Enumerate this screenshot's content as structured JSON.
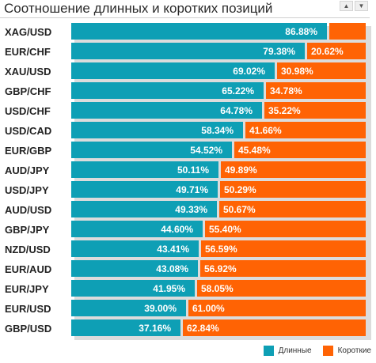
{
  "title": "Соотношение длинных и коротких позиций",
  "nav": {
    "up_icon": "triangle-up-icon",
    "down_icon": "triangle-down-icon"
  },
  "colors": {
    "long": "#0e9fb5",
    "short": "#ff6304"
  },
  "legend": {
    "long_label": "Длинные",
    "short_label": "Короткие"
  },
  "chart_data": {
    "type": "bar",
    "orientation": "horizontal-stacked-100",
    "title": "Соотношение длинных и коротких позиций",
    "categories": [
      "XAG/USD",
      "EUR/CHF",
      "XAU/USD",
      "GBP/CHF",
      "USD/CHF",
      "USD/CAD",
      "EUR/GBP",
      "AUD/JPY",
      "USD/JPY",
      "AUD/USD",
      "GBP/JPY",
      "NZD/USD",
      "EUR/AUD",
      "EUR/JPY",
      "EUR/USD",
      "GBP/USD"
    ],
    "series": [
      {
        "name": "Длинные",
        "values": [
          86.88,
          79.38,
          69.02,
          65.22,
          64.78,
          58.34,
          54.52,
          50.11,
          49.71,
          49.33,
          44.6,
          43.41,
          43.08,
          41.95,
          39.0,
          37.16
        ],
        "labels": [
          "86.88%",
          "79.38%",
          "69.02%",
          "65.22%",
          "64.78%",
          "58.34%",
          "54.52%",
          "50.11%",
          "49.71%",
          "49.33%",
          "44.60%",
          "43.41%",
          "43.08%",
          "41.95%",
          "39.00%",
          "37.16%"
        ]
      },
      {
        "name": "Короткие",
        "values": [
          13.12,
          20.62,
          30.98,
          34.78,
          35.22,
          41.66,
          45.48,
          49.89,
          50.29,
          50.67,
          55.4,
          56.59,
          56.92,
          58.05,
          61.0,
          62.84
        ],
        "labels": [
          "",
          "20.62%",
          "30.98%",
          "34.78%",
          "35.22%",
          "41.66%",
          "45.48%",
          "49.89%",
          "50.29%",
          "50.67%",
          "55.40%",
          "56.59%",
          "56.92%",
          "58.05%",
          "61.00%",
          "62.84%"
        ]
      }
    ],
    "xlim": [
      0,
      100
    ],
    "legend_position": "bottom-right",
    "grid": false
  }
}
